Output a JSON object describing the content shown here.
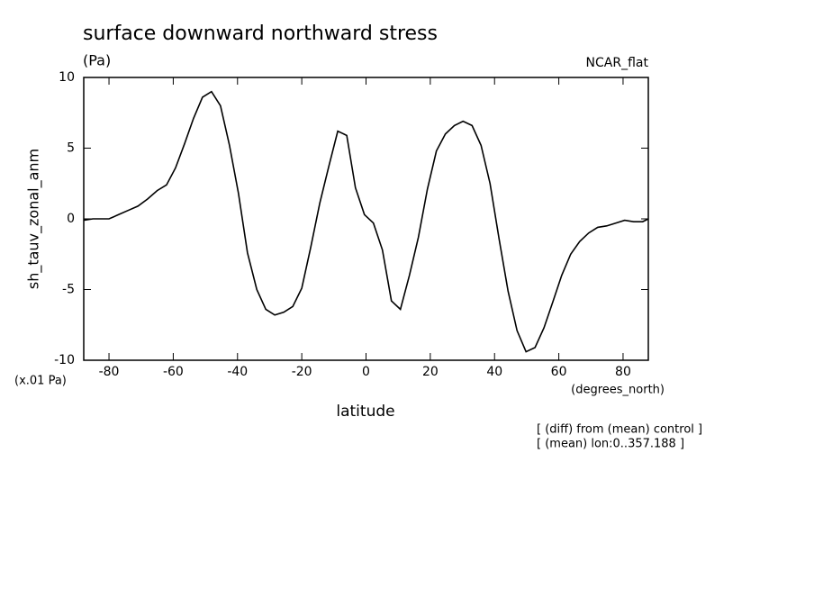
{
  "chart_data": {
    "type": "line",
    "title": "surface downward northward stress",
    "subtitle": "(Pa)",
    "annotation_right": "NCAR_flat",
    "ylabel": "sh_tauv_zonal_anm",
    "y_units": "(x.01 Pa)",
    "x_units": "(degrees_north)",
    "xlabel": "latitude",
    "notes": [
      "[ (diff) from (mean) control ]",
      "[ (mean) lon:0..357.188 ]"
    ],
    "xlim": [
      -87.86,
      87.86
    ],
    "ylim": [
      -10,
      10
    ],
    "xticks": [
      -80,
      -60,
      -40,
      -20,
      0,
      20,
      40,
      60,
      80
    ],
    "yticks": [
      -10,
      -5,
      0,
      5,
      10
    ],
    "color": "#000000",
    "x": [
      -87.9,
      -85,
      -80,
      -77,
      -74,
      -71,
      -68,
      -65,
      -62.1,
      -59.3,
      -56.5,
      -53.7,
      -50.9,
      -48.1,
      -45.3,
      -42.5,
      -39.7,
      -36.9,
      -34.0,
      -31.2,
      -28.4,
      -25.6,
      -22.8,
      -20.0,
      -17.2,
      -14.4,
      -11.6,
      -8.8,
      -6.0,
      -3.3,
      -0.5,
      2.3,
      5.1,
      7.9,
      10.7,
      13.5,
      16.3,
      19.1,
      21.9,
      24.7,
      27.5,
      30.2,
      33.0,
      35.8,
      38.6,
      41.4,
      44.2,
      47.0,
      49.8,
      52.6,
      55.4,
      58.1,
      60.9,
      63.7,
      66.5,
      69.3,
      72.1,
      74.9,
      77.7,
      80.5,
      83.3,
      86.1,
      87.9
    ],
    "values": [
      -0.1,
      0,
      0,
      0.3,
      0.6,
      0.9,
      1.4,
      2.0,
      2.4,
      3.6,
      5.3,
      7.1,
      8.6,
      9.0,
      8.0,
      5.2,
      1.8,
      -2.4,
      -5.0,
      -6.4,
      -6.8,
      -6.6,
      -6.2,
      -4.9,
      -2.0,
      1.1,
      3.7,
      6.2,
      5.9,
      2.2,
      0.3,
      -0.3,
      -2.2,
      -5.8,
      -6.4,
      -4.0,
      -1.3,
      2.1,
      4.8,
      6.0,
      6.6,
      6.9,
      6.6,
      5.2,
      2.5,
      -1.4,
      -5.1,
      -7.9,
      -9.4,
      -9.1,
      -7.7,
      -5.9,
      -4.0,
      -2.5,
      -1.6,
      -1.0,
      -0.6,
      -0.5,
      -0.3,
      -0.1,
      -0.2,
      -0.2,
      0.0
    ]
  }
}
